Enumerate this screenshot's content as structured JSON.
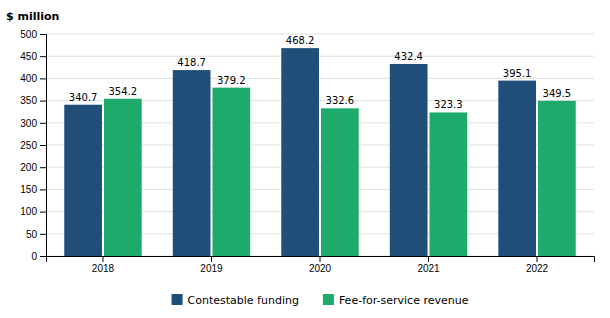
{
  "chart_data": {
    "type": "bar",
    "ylabel": "$ million",
    "categories": [
      "2018",
      "2019",
      "2020",
      "2021",
      "2022"
    ],
    "series": [
      {
        "name": "Contestable funding",
        "color": "#1F4E79",
        "values": [
          340.7,
          418.7,
          468.2,
          432.4,
          395.1
        ]
      },
      {
        "name": "Fee-for-service revenue",
        "color": "#1DAA6A",
        "values": [
          354.2,
          379.2,
          332.6,
          323.3,
          349.5
        ]
      }
    ],
    "ylim": [
      0,
      500
    ],
    "yticks": [
      0,
      50,
      100,
      150,
      200,
      250,
      300,
      350,
      400,
      450,
      500
    ],
    "grid": true,
    "legend": "bottom",
    "data_labels": true
  }
}
